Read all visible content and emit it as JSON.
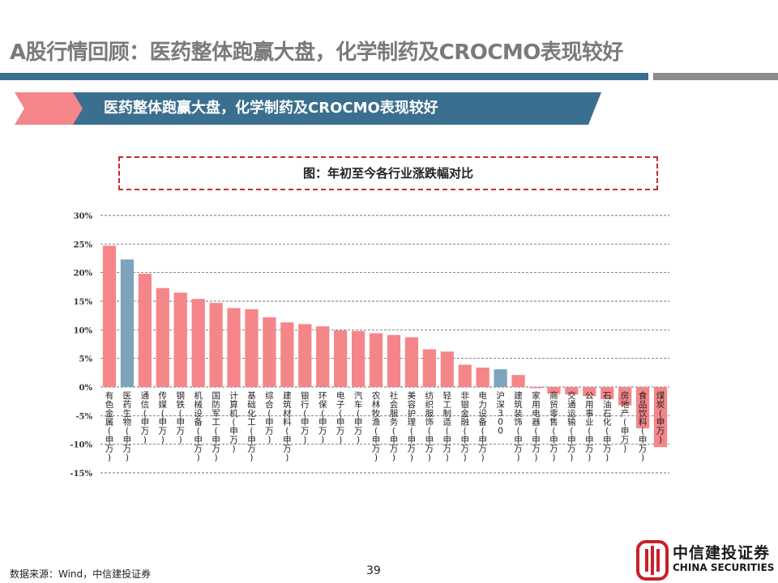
{
  "page_title": "A股行情回顾：医药整体跑赢大盘，化学制药及CROCMO表现较好",
  "banner": {
    "text": "医药整体跑赢大盘，化学制药及CROCMO表现较好"
  },
  "chart_title": "图：年初至今各行业涨跌幅对比",
  "colors": {
    "positive": "#f4868a",
    "highlight": "#7ea3bd",
    "rule_blue": "#3b6f8f",
    "rule_gray": "#8c8c8c",
    "banner_red": "#f4868a",
    "logo_red": "#c8202a"
  },
  "chart_data": {
    "type": "bar",
    "title": "图：年初至今各行业涨跌幅对比",
    "xlabel": "",
    "ylabel": "",
    "ylim": [
      -15,
      30
    ],
    "yticks": [
      "30%",
      "25%",
      "20%",
      "15%",
      "10%",
      "5%",
      "0%",
      "-5%",
      "-10%",
      "-15%"
    ],
    "grid": true,
    "categories": [
      "有色金属(申万)",
      "医药生物(申万)",
      "通信(申万)",
      "传媒(申万)",
      "钢铁(申万)",
      "机械设备(申万)",
      "国防军工(申万)",
      "计算机(申万)",
      "基础化工(申万)",
      "综合(申万)",
      "建筑材料(申万)",
      "银行(申万)",
      "环保(申万)",
      "电子(申万)",
      "汽车(申万)",
      "农林牧渔(申万)",
      "社会服务(申万)",
      "美容护理(申万)",
      "纺织服饰(申万)",
      "轻工制造(申万)",
      "非银金融(申万)",
      "电力设备(申万)",
      "沪深300",
      "建筑装饰(申万)",
      "家用电器(申万)",
      "商贸零售(申万)",
      "交通运输(申万)",
      "公用事业(申万)",
      "石油石化(申万)",
      "房地产(申万)",
      "食品饮料(申万)",
      "煤炭(申万)"
    ],
    "values": [
      24.7,
      22.3,
      19.8,
      17.3,
      16.5,
      15.4,
      14.7,
      13.8,
      13.6,
      12.2,
      11.3,
      11.0,
      10.6,
      9.9,
      9.8,
      9.4,
      9.1,
      8.7,
      6.6,
      6.2,
      3.9,
      3.4,
      3.1,
      2.1,
      -0.2,
      -1.2,
      -1.3,
      -1.6,
      -2.1,
      -3.2,
      -7.2,
      -10.5
    ],
    "highlight": [
      "医药生物(申万)",
      "沪深300"
    ]
  },
  "footer": {
    "source": "数据来源：Wind，中信建投证券",
    "page_number": "39"
  },
  "logo": {
    "name_cn": "中信建投证券",
    "name_en": "CHINA SECURITIES"
  }
}
